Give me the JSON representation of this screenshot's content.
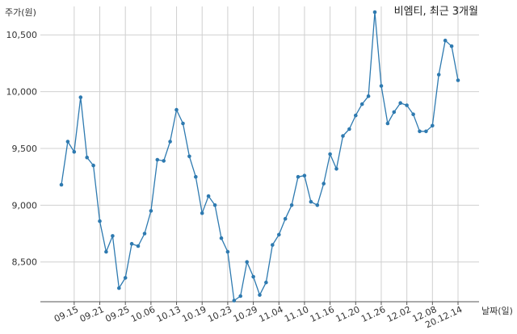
{
  "chart_data": {
    "type": "line",
    "title": "비엠티, 최근 3개월",
    "ylabel": "주가(원)",
    "xlabel": "날짜(일)",
    "ylim": [
      8150,
      10750
    ],
    "yticks": [
      8500,
      9000,
      9500,
      10000,
      10500
    ],
    "ytick_labels": [
      "8,500",
      "9,000",
      "9,500",
      "10,000",
      "10,500"
    ],
    "xtick_labels": [
      "09.15",
      "09.21",
      "09.25",
      "10.06",
      "10.13",
      "10.19",
      "10.23",
      "10.29",
      "11.04",
      "11.10",
      "11.16",
      "11.20",
      "11.26",
      "12.02",
      "12.08",
      "20.12.14"
    ],
    "xtick_index": [
      2,
      6,
      10,
      14,
      18,
      22,
      26,
      30,
      34,
      38,
      42,
      46,
      50,
      54,
      58,
      62
    ],
    "grid": true,
    "series_color": "#2e7ab0",
    "series": [
      {
        "values": [
          9180,
          9560,
          9470,
          9950,
          9420,
          9350,
          8860,
          8590,
          8730,
          8270,
          8360,
          8660,
          8640,
          8750,
          8950,
          9400,
          9390,
          9560,
          9840,
          9720,
          9430,
          9250,
          8930,
          9080,
          9000,
          8710,
          8590,
          8160,
          8200,
          8500,
          8370,
          8210,
          8320,
          8650,
          8740,
          8880,
          9000,
          9250,
          9260,
          9030,
          9000,
          9190,
          9450,
          9320,
          9610,
          9670,
          9790,
          9890,
          9960,
          10700,
          10050,
          9720,
          9820,
          9900,
          9880,
          9800,
          9650,
          9650,
          9700,
          10150,
          10450,
          10400,
          10100
        ]
      }
    ]
  }
}
